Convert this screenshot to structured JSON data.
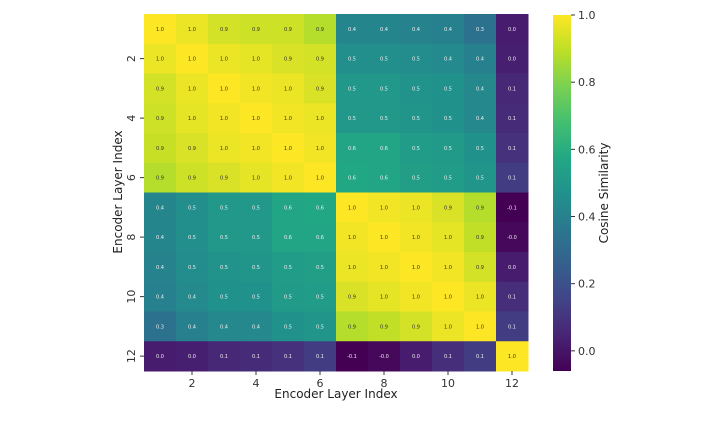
{
  "chart_data": {
    "type": "heatmap",
    "title": "",
    "xlabel": "Encoder Layer Index",
    "ylabel": "Encoder Layer Index",
    "colorbar_label": "Cosine Similarity",
    "colormap": "viridis",
    "vmin": -0.06,
    "vmax": 1.0,
    "colorbar_ticks": [
      0.0,
      0.2,
      0.4,
      0.6,
      0.8,
      1.0
    ],
    "x_categories": [
      1,
      2,
      3,
      4,
      5,
      6,
      7,
      8,
      9,
      10,
      11,
      12
    ],
    "y_categories": [
      1,
      2,
      3,
      4,
      5,
      6,
      7,
      8,
      9,
      10,
      11,
      12
    ],
    "x_tick_labels": [
      "2",
      "4",
      "6",
      "8",
      "10",
      "12"
    ],
    "y_tick_labels": [
      "2",
      "4",
      "6",
      "8",
      "10",
      "12"
    ],
    "values": [
      [
        1.0,
        0.97,
        0.93,
        0.92,
        0.92,
        0.88,
        0.42,
        0.42,
        0.41,
        0.4,
        0.34,
        0.02
      ],
      [
        0.97,
        1.0,
        0.97,
        0.96,
        0.94,
        0.93,
        0.46,
        0.46,
        0.45,
        0.44,
        0.4,
        0.03
      ],
      [
        0.93,
        0.97,
        1.0,
        0.98,
        0.97,
        0.94,
        0.5,
        0.5,
        0.48,
        0.47,
        0.43,
        0.06
      ],
      [
        0.92,
        0.96,
        0.98,
        1.0,
        0.98,
        0.97,
        0.5,
        0.5,
        0.49,
        0.47,
        0.43,
        0.07
      ],
      [
        0.91,
        0.94,
        0.97,
        0.98,
        1.0,
        0.98,
        0.56,
        0.56,
        0.52,
        0.51,
        0.47,
        0.09
      ],
      [
        0.88,
        0.92,
        0.94,
        0.96,
        0.98,
        1.0,
        0.57,
        0.56,
        0.53,
        0.52,
        0.49,
        0.13
      ],
      [
        0.42,
        0.46,
        0.5,
        0.5,
        0.56,
        0.57,
        1.0,
        0.98,
        0.97,
        0.94,
        0.88,
        -0.06
      ],
      [
        0.42,
        0.46,
        0.5,
        0.5,
        0.56,
        0.56,
        0.98,
        1.0,
        0.98,
        0.96,
        0.9,
        -0.04
      ],
      [
        0.41,
        0.45,
        0.48,
        0.49,
        0.52,
        0.53,
        0.97,
        0.98,
        1.0,
        0.98,
        0.93,
        0.02
      ],
      [
        0.4,
        0.44,
        0.47,
        0.47,
        0.51,
        0.52,
        0.94,
        0.96,
        0.98,
        1.0,
        0.97,
        0.08
      ],
      [
        0.34,
        0.4,
        0.43,
        0.43,
        0.47,
        0.49,
        0.88,
        0.9,
        0.93,
        0.97,
        1.0,
        0.13
      ],
      [
        0.02,
        0.03,
        0.06,
        0.07,
        0.09,
        0.13,
        -0.06,
        -0.04,
        0.02,
        0.08,
        0.13,
        1.0
      ]
    ],
    "annotation_format": "1 decimal",
    "grid": false,
    "legend": "colorbar right"
  }
}
